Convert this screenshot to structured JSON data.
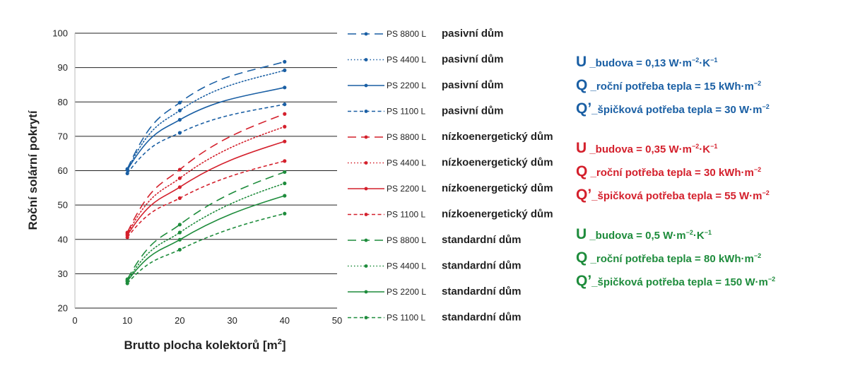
{
  "chart_data": {
    "type": "line",
    "title": "",
    "xlabel": "Brutto plocha kolektorů [m",
    "xlabel_sup": "2",
    "xlabel_end": "]",
    "ylabel": "Roční solární pokrytí",
    "xlim": [
      0,
      50
    ],
    "ylim": [
      20,
      100
    ],
    "xticks": [
      0,
      10,
      20,
      30,
      40,
      50
    ],
    "yticks": [
      20,
      30,
      40,
      50,
      60,
      70,
      80,
      90,
      100
    ],
    "grid": "horizontal",
    "x": [
      10,
      20,
      40
    ],
    "series": [
      {
        "name": "PS 8800 L",
        "house": "pasivní dům",
        "color": "#1a5fa4",
        "style": "longdash",
        "values": [
          60.5,
          79.8,
          91.7
        ]
      },
      {
        "name": "PS 4400 L",
        "house": "pasivní dům",
        "color": "#1a5fa4",
        "style": "dotted",
        "values": [
          60.3,
          77.5,
          89.2
        ]
      },
      {
        "name": "PS 2200 L",
        "house": "pasivní dům",
        "color": "#1a5fa4",
        "style": "solid",
        "values": [
          60.2,
          74.8,
          84.2
        ]
      },
      {
        "name": "PS 1100 L",
        "house": "pasivní dům",
        "color": "#1a5fa4",
        "style": "shortdash",
        "values": [
          59.2,
          71.0,
          79.3
        ]
      },
      {
        "name": "PS 8800 L",
        "house": "nízkoenergetický dům",
        "color": "#d4202c",
        "style": "longdash",
        "values": [
          42.0,
          60.3,
          76.5
        ]
      },
      {
        "name": "PS 4400 L",
        "house": "nízkoenergetický dům",
        "color": "#d4202c",
        "style": "dotted",
        "values": [
          41.6,
          57.8,
          72.8
        ]
      },
      {
        "name": "PS 2200 L",
        "house": "nízkoenergetický dům",
        "color": "#d4202c",
        "style": "solid",
        "values": [
          41.2,
          55.2,
          68.5
        ]
      },
      {
        "name": "PS 1100 L",
        "house": "nízkoenergetický dům",
        "color": "#d4202c",
        "style": "shortdash",
        "values": [
          40.6,
          52.0,
          62.8
        ]
      },
      {
        "name": "PS 8800 L",
        "house": "standardní dům",
        "color": "#1e8c3c",
        "style": "longdash",
        "values": [
          28.4,
          44.3,
          59.6
        ]
      },
      {
        "name": "PS 4400 L",
        "house": "standardní dům",
        "color": "#1e8c3c",
        "style": "dotted",
        "values": [
          28.0,
          42.0,
          56.3
        ]
      },
      {
        "name": "PS 2200 L",
        "house": "standardní dům",
        "color": "#1e8c3c",
        "style": "solid",
        "values": [
          27.8,
          39.9,
          52.7
        ]
      },
      {
        "name": "PS 1100 L",
        "house": "standardní dům",
        "color": "#1e8c3c",
        "style": "shortdash",
        "values": [
          27.2,
          37.0,
          47.5
        ]
      }
    ]
  },
  "info_groups": [
    {
      "color": "#1a5fa4",
      "lines": [
        {
          "big": "U",
          "parts": [
            {
              "t": " _budova = 0,13 W·m"
            },
            {
              "sup": "−2"
            },
            {
              "t": "·K"
            },
            {
              "sup": "−1"
            }
          ]
        },
        {
          "big": "Q",
          "parts": [
            {
              "t": " _roční potřeba tepla = 15 kWh·m"
            },
            {
              "sup": "−2"
            }
          ]
        },
        {
          "big": "Q’",
          "parts": [
            {
              "t": "_špičková potřeba tepla = 30 W·m"
            },
            {
              "sup": "−2"
            }
          ]
        }
      ]
    },
    {
      "color": "#d4202c",
      "lines": [
        {
          "big": "U",
          "parts": [
            {
              "t": " _budova = 0,35 W·m"
            },
            {
              "sup": "−2"
            },
            {
              "t": "·K"
            },
            {
              "sup": "−1"
            }
          ]
        },
        {
          "big": "Q",
          "parts": [
            {
              "t": " _roční potřeba tepla = 30 kWh·m"
            },
            {
              "sup": "−2"
            }
          ]
        },
        {
          "big": "Q’",
          "parts": [
            {
              "t": "_špičková potřeba tepla = 55 W·m"
            },
            {
              "sup": "−2"
            }
          ]
        }
      ]
    },
    {
      "color": "#1e8c3c",
      "lines": [
        {
          "big": "U",
          "parts": [
            {
              "t": " _budova = 0,5 W·m"
            },
            {
              "sup": "−2"
            },
            {
              "t": "·K"
            },
            {
              "sup": "−1"
            }
          ]
        },
        {
          "big": "Q",
          "parts": [
            {
              "t": " _roční potřeba tepla = 80 kWh·m"
            },
            {
              "sup": "−2"
            }
          ]
        },
        {
          "big": "Q’",
          "parts": [
            {
              "t": "_špičková potřeba tepla = 150 W·m"
            },
            {
              "sup": "−2"
            }
          ]
        }
      ]
    }
  ]
}
